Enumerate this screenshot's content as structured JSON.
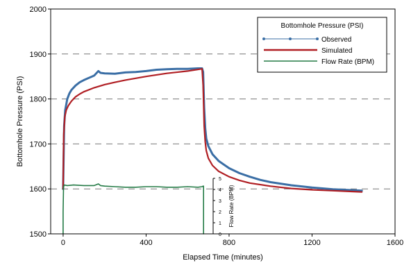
{
  "chart_data": {
    "type": "line",
    "xlabel": "Elapsed Time (minutes)",
    "ylabel": "Bottomhole Pressure (PSI)",
    "y2label": "Flow Rate (BPM)",
    "xlim": [
      -60,
      1600
    ],
    "ylim": [
      1500,
      2000
    ],
    "x_ticks": [
      0,
      400,
      800,
      1200,
      1600
    ],
    "y_ticks": [
      1500,
      1600,
      1700,
      1800,
      1900,
      2000
    ],
    "y2_ticks": [
      0,
      1,
      2,
      3,
      4,
      5
    ],
    "y2lim": [
      0,
      5
    ],
    "grid": "dashed horizontal",
    "legend": {
      "title": "Bottomhole Pressure (PSI)",
      "position": "top-right",
      "entries": [
        "Observed",
        "Simulated",
        "Flow Rate (BPM)"
      ]
    },
    "colors": {
      "observed": "#3a6ea5",
      "simulated": "#b01e23",
      "flow": "#237a45"
    },
    "series": [
      {
        "name": "Observed",
        "axis": "left",
        "x": [
          0,
          5,
          10,
          20,
          30,
          40,
          60,
          80,
          100,
          120,
          150,
          170,
          180,
          200,
          250,
          300,
          350,
          400,
          450,
          500,
          550,
          600,
          650,
          670,
          675,
          680,
          685,
          690,
          700,
          720,
          750,
          800,
          850,
          900,
          950,
          1000,
          1100,
          1200,
          1300,
          1400,
          1440
        ],
        "y": [
          1600,
          1740,
          1775,
          1800,
          1812,
          1820,
          1830,
          1837,
          1842,
          1846,
          1852,
          1862,
          1858,
          1857,
          1856,
          1859,
          1860,
          1862,
          1865,
          1866,
          1867,
          1867,
          1868,
          1868,
          1860,
          1780,
          1735,
          1712,
          1695,
          1677,
          1662,
          1646,
          1635,
          1627,
          1620,
          1615,
          1608,
          1603,
          1599,
          1597,
          1596
        ]
      },
      {
        "name": "Simulated",
        "axis": "left",
        "x": [
          0,
          3,
          8,
          15,
          25,
          40,
          60,
          80,
          100,
          150,
          200,
          250,
          300,
          400,
          500,
          600,
          670,
          675,
          680,
          685,
          690,
          700,
          720,
          750,
          800,
          850,
          900,
          1000,
          1100,
          1200,
          1300,
          1400,
          1440
        ],
        "y": [
          1600,
          1720,
          1760,
          1775,
          1785,
          1795,
          1805,
          1811,
          1816,
          1825,
          1832,
          1837,
          1842,
          1850,
          1857,
          1862,
          1867,
          1830,
          1740,
          1705,
          1685,
          1668,
          1652,
          1639,
          1627,
          1619,
          1613,
          1606,
          1601,
          1598,
          1596,
          1594,
          1593
        ]
      },
      {
        "name": "Flow Rate (BPM)",
        "axis": "right",
        "x": [
          0,
          0,
          2,
          5,
          20,
          50,
          100,
          150,
          170,
          180,
          200,
          250,
          300,
          350,
          400,
          450,
          500,
          550,
          600,
          650,
          670,
          675,
          677,
          677
        ],
        "y": [
          0,
          2,
          4.2,
          4.4,
          4.35,
          4.4,
          4.35,
          4.35,
          4.5,
          4.35,
          4.3,
          4.25,
          4.2,
          4.2,
          4.25,
          4.25,
          4.2,
          4.2,
          4.25,
          4.2,
          4.25,
          4.3,
          4.3,
          0
        ]
      }
    ]
  }
}
